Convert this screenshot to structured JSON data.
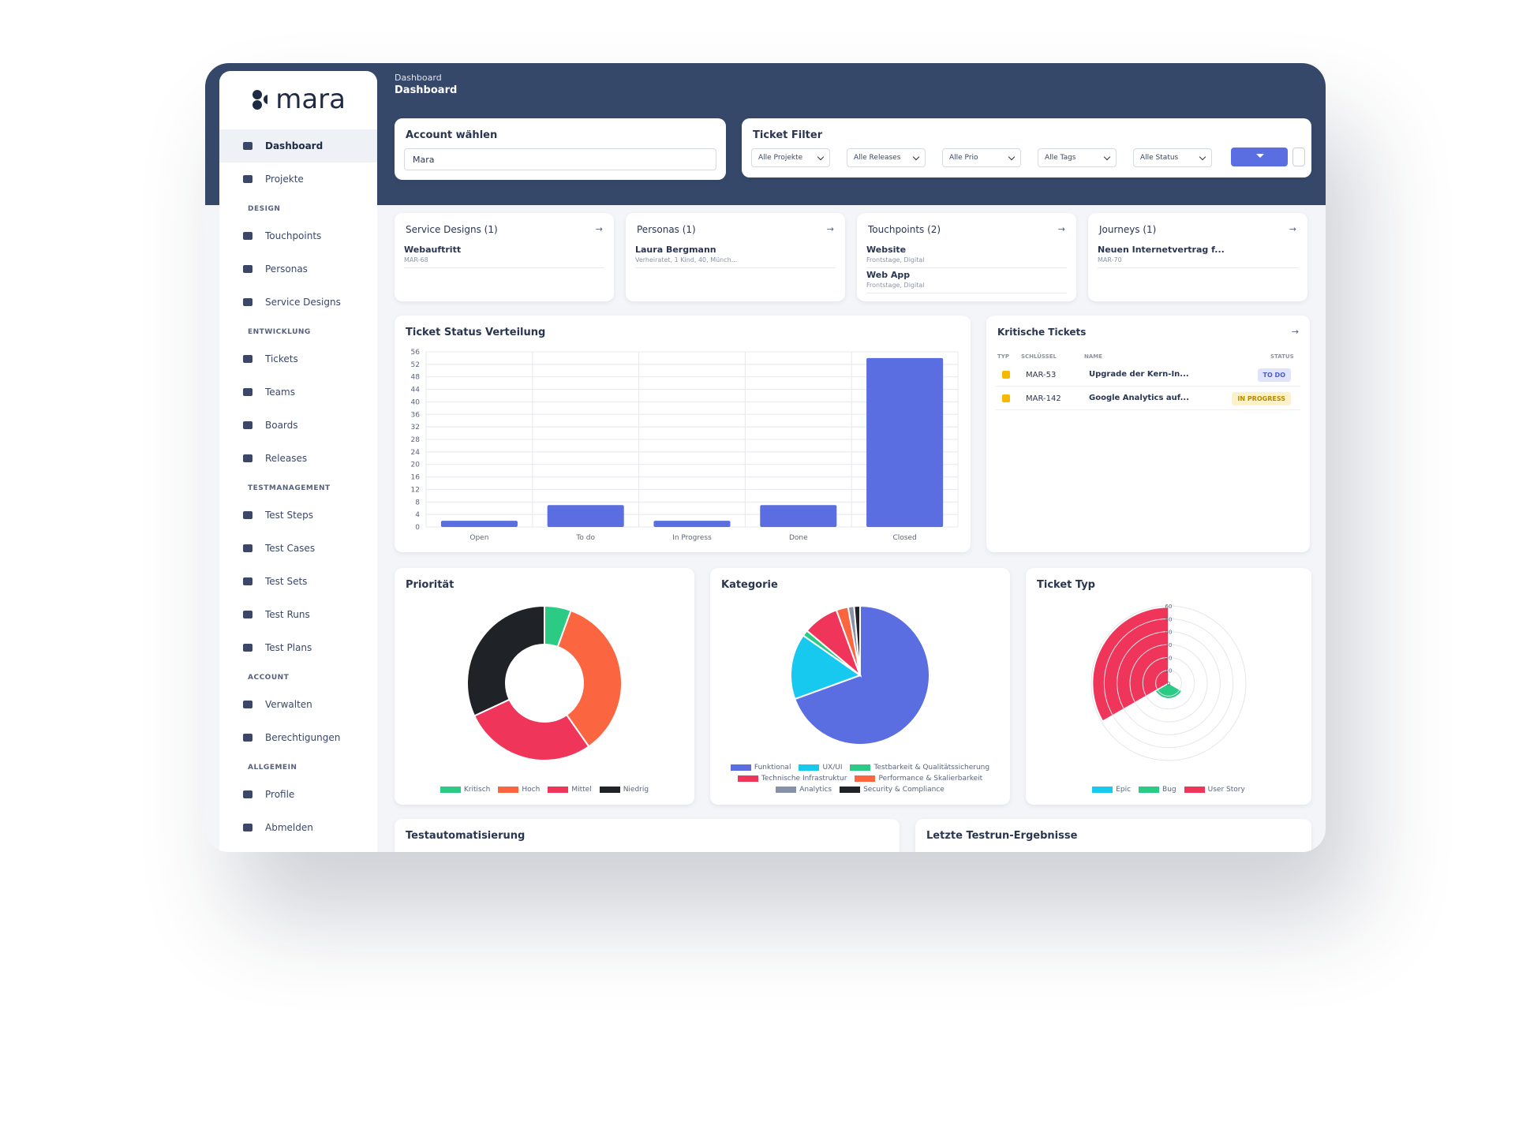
{
  "sidebar": {
    "logo": "mara",
    "top": [
      "Dashboard",
      "Projekte"
    ],
    "groups": [
      {
        "heading": "DESIGN",
        "items": [
          "Touchpoints",
          "Personas",
          "Service Designs"
        ]
      },
      {
        "heading": "ENTWICKLUNG",
        "items": [
          "Tickets",
          "Teams",
          "Boards",
          "Releases"
        ]
      },
      {
        "heading": "TESTMANAGEMENT",
        "items": [
          "Test Steps",
          "Test Cases",
          "Test Sets",
          "Test Runs",
          "Test Plans"
        ]
      },
      {
        "heading": "ACCOUNT",
        "items": [
          "Verwalten",
          "Berechtigungen"
        ]
      },
      {
        "heading": "ALLGEMEIN",
        "items": [
          "Profile",
          "Abmelden"
        ]
      }
    ]
  },
  "header": {
    "breadcrumb": "Dashboard",
    "title": "Dashboard"
  },
  "account": {
    "title": "Account wählen",
    "value": "Mara"
  },
  "filter": {
    "title": "Ticket Filter",
    "selects": [
      "Alle Projekte",
      "Alle Releases",
      "Alle Prio",
      "Alle Tags",
      "Alle Status"
    ]
  },
  "cards": [
    {
      "title": "Service Designs (1)",
      "items": [
        {
          "name": "Webauftritt",
          "sub": "MAR-68"
        }
      ]
    },
    {
      "title": "Personas (1)",
      "items": [
        {
          "name": "Laura Bergmann",
          "sub": "Verheiratet, 1 Kind, 40, Münch..."
        }
      ]
    },
    {
      "title": "Touchpoints (2)",
      "items": [
        {
          "name": "Website",
          "sub": "Frontstage, Digital"
        },
        {
          "name": "Web App",
          "sub": "Frontstage, Digital"
        }
      ]
    },
    {
      "title": "Journeys (1)",
      "items": [
        {
          "name": "Neuen Internetvertrag f...",
          "sub": "MAR-70"
        }
      ]
    }
  ],
  "critical": {
    "title": "Kritische Tickets",
    "columns": [
      "TYP",
      "SCHLÜSSEL",
      "NAME",
      "STATUS"
    ],
    "rows": [
      {
        "key": "MAR-53",
        "name": "Upgrade der Kern-In...",
        "status": "TO DO"
      },
      {
        "key": "MAR-142",
        "name": "Google Analytics auf...",
        "status": "IN PROGRESS"
      }
    ]
  },
  "bottom": {
    "left": "Testautomatisierung",
    "right": "Letzte Testrun-Ergebnisse"
  },
  "chart_data": [
    {
      "type": "bar",
      "title": "Ticket Status Verteilung",
      "categories": [
        "Open",
        "To do",
        "In Progress",
        "Done",
        "Closed"
      ],
      "values": [
        2,
        7,
        2,
        7,
        54
      ],
      "color": "#5b6ee1",
      "ylim": [
        0,
        56
      ],
      "yticks": [
        0,
        4,
        8,
        12,
        16,
        20,
        24,
        28,
        32,
        36,
        40,
        44,
        48,
        52,
        56
      ],
      "grid": true
    },
    {
      "type": "doughnut",
      "title": "Priorität",
      "categories": [
        "Kritisch",
        "Hoch",
        "Mittel",
        "Niedrig"
      ],
      "values": [
        4,
        25,
        20,
        23
      ],
      "colors": [
        "#2bcb85",
        "#fb6540",
        "#f0355a",
        "#1f2328"
      ],
      "legend": "bottom"
    },
    {
      "type": "pie",
      "title": "Kategorie",
      "categories": [
        "Funktional",
        "UX/UI",
        "Testbarkeit & Qualitätssicherung",
        "Technische Infrastruktur",
        "Performance & Skalierbarkeit",
        "Analytics",
        "Security & Compliance"
      ],
      "values": [
        50,
        11,
        1,
        6,
        2,
        1,
        1
      ],
      "colors": [
        "#5b6ee1",
        "#17c9ee",
        "#2bcb85",
        "#f0355a",
        "#fb6540",
        "#8792a8",
        "#1f2328"
      ],
      "legend": "bottom"
    },
    {
      "type": "polarArea",
      "title": "Ticket Typ",
      "categories": [
        "Epic",
        "Bug",
        "User Story"
      ],
      "values": [
        1,
        12,
        59
      ],
      "colors": [
        "#17c9ee",
        "#2bcb85",
        "#f0355a"
      ],
      "legend": "bottom",
      "rlim": [
        0,
        60
      ],
      "rticks": [
        0,
        10,
        20,
        30,
        40,
        50,
        60
      ]
    }
  ]
}
